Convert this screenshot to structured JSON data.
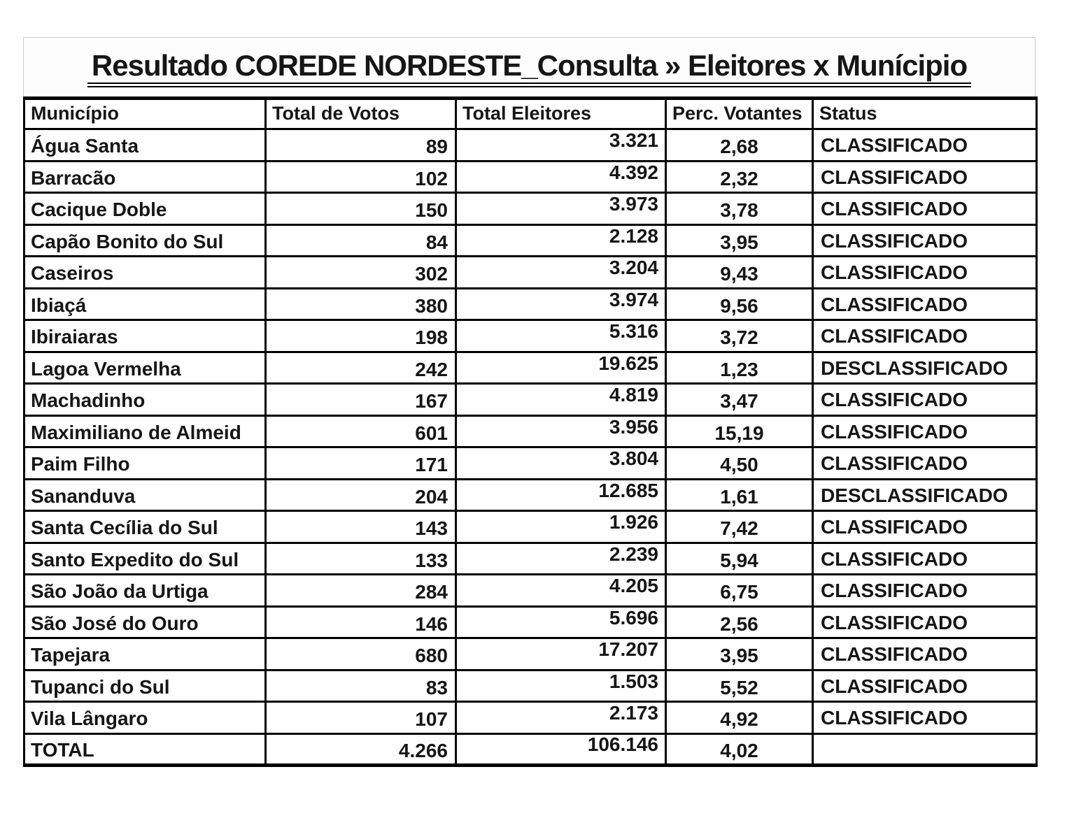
{
  "page": {
    "title": "Resultado COREDE NORDESTE_Consulta » Eleitores x Munícipio"
  },
  "colors": {
    "background": "#ffffff",
    "text": "#161616",
    "grid_border": "#000000",
    "title_block_border": "#cccccc"
  },
  "table": {
    "headers": [
      "Município",
      "Total de Votos",
      "Total Eleitores",
      "Perc. Votantes",
      "Status"
    ],
    "rows": [
      [
        "Água Santa",
        "89",
        "3.321",
        "2,68",
        "CLASSIFICADO"
      ],
      [
        "Barracão",
        "102",
        "4.392",
        "2,32",
        "CLASSIFICADO"
      ],
      [
        "Cacique Doble",
        "150",
        "3.973",
        "3,78",
        "CLASSIFICADO"
      ],
      [
        "Capão Bonito do Sul",
        "84",
        "2.128",
        "3,95",
        "CLASSIFICADO"
      ],
      [
        "Caseiros",
        "302",
        "3.204",
        "9,43",
        "CLASSIFICADO"
      ],
      [
        "Ibiaçá",
        "380",
        "3.974",
        "9,56",
        "CLASSIFICADO"
      ],
      [
        "Ibiraiaras",
        "198",
        "5.316",
        "3,72",
        "CLASSIFICADO"
      ],
      [
        "Lagoa Vermelha",
        "242",
        "19.625",
        "1,23",
        "DESCLASSIFICADO"
      ],
      [
        "Machadinho",
        "167",
        "4.819",
        "3,47",
        "CLASSIFICADO"
      ],
      [
        "Maximiliano de Almeid",
        "601",
        "3.956",
        "15,19",
        "CLASSIFICADO"
      ],
      [
        "Paim Filho",
        "171",
        "3.804",
        "4,50",
        "CLASSIFICADO"
      ],
      [
        "Sananduva",
        "204",
        "12.685",
        "1,61",
        "DESCLASSIFICADO"
      ],
      [
        "Santa Cecília do Sul",
        "143",
        "1.926",
        "7,42",
        "CLASSIFICADO"
      ],
      [
        "Santo Expedito do Sul",
        "133",
        "2.239",
        "5,94",
        "CLASSIFICADO"
      ],
      [
        "São João da Urtiga",
        "284",
        "4.205",
        "6,75",
        "CLASSIFICADO"
      ],
      [
        "São José do Ouro",
        "146",
        "5.696",
        "2,56",
        "CLASSIFICADO"
      ],
      [
        "Tapejara",
        "680",
        "17.207",
        "3,95",
        "CLASSIFICADO"
      ],
      [
        "Tupanci do Sul",
        "83",
        "1.503",
        "5,52",
        "CLASSIFICADO"
      ],
      [
        "Vila Lângaro",
        "107",
        "2.173",
        "4,92",
        "CLASSIFICADO"
      ],
      [
        "TOTAL",
        "4.266",
        "106.146",
        "4,02",
        ""
      ]
    ]
  }
}
